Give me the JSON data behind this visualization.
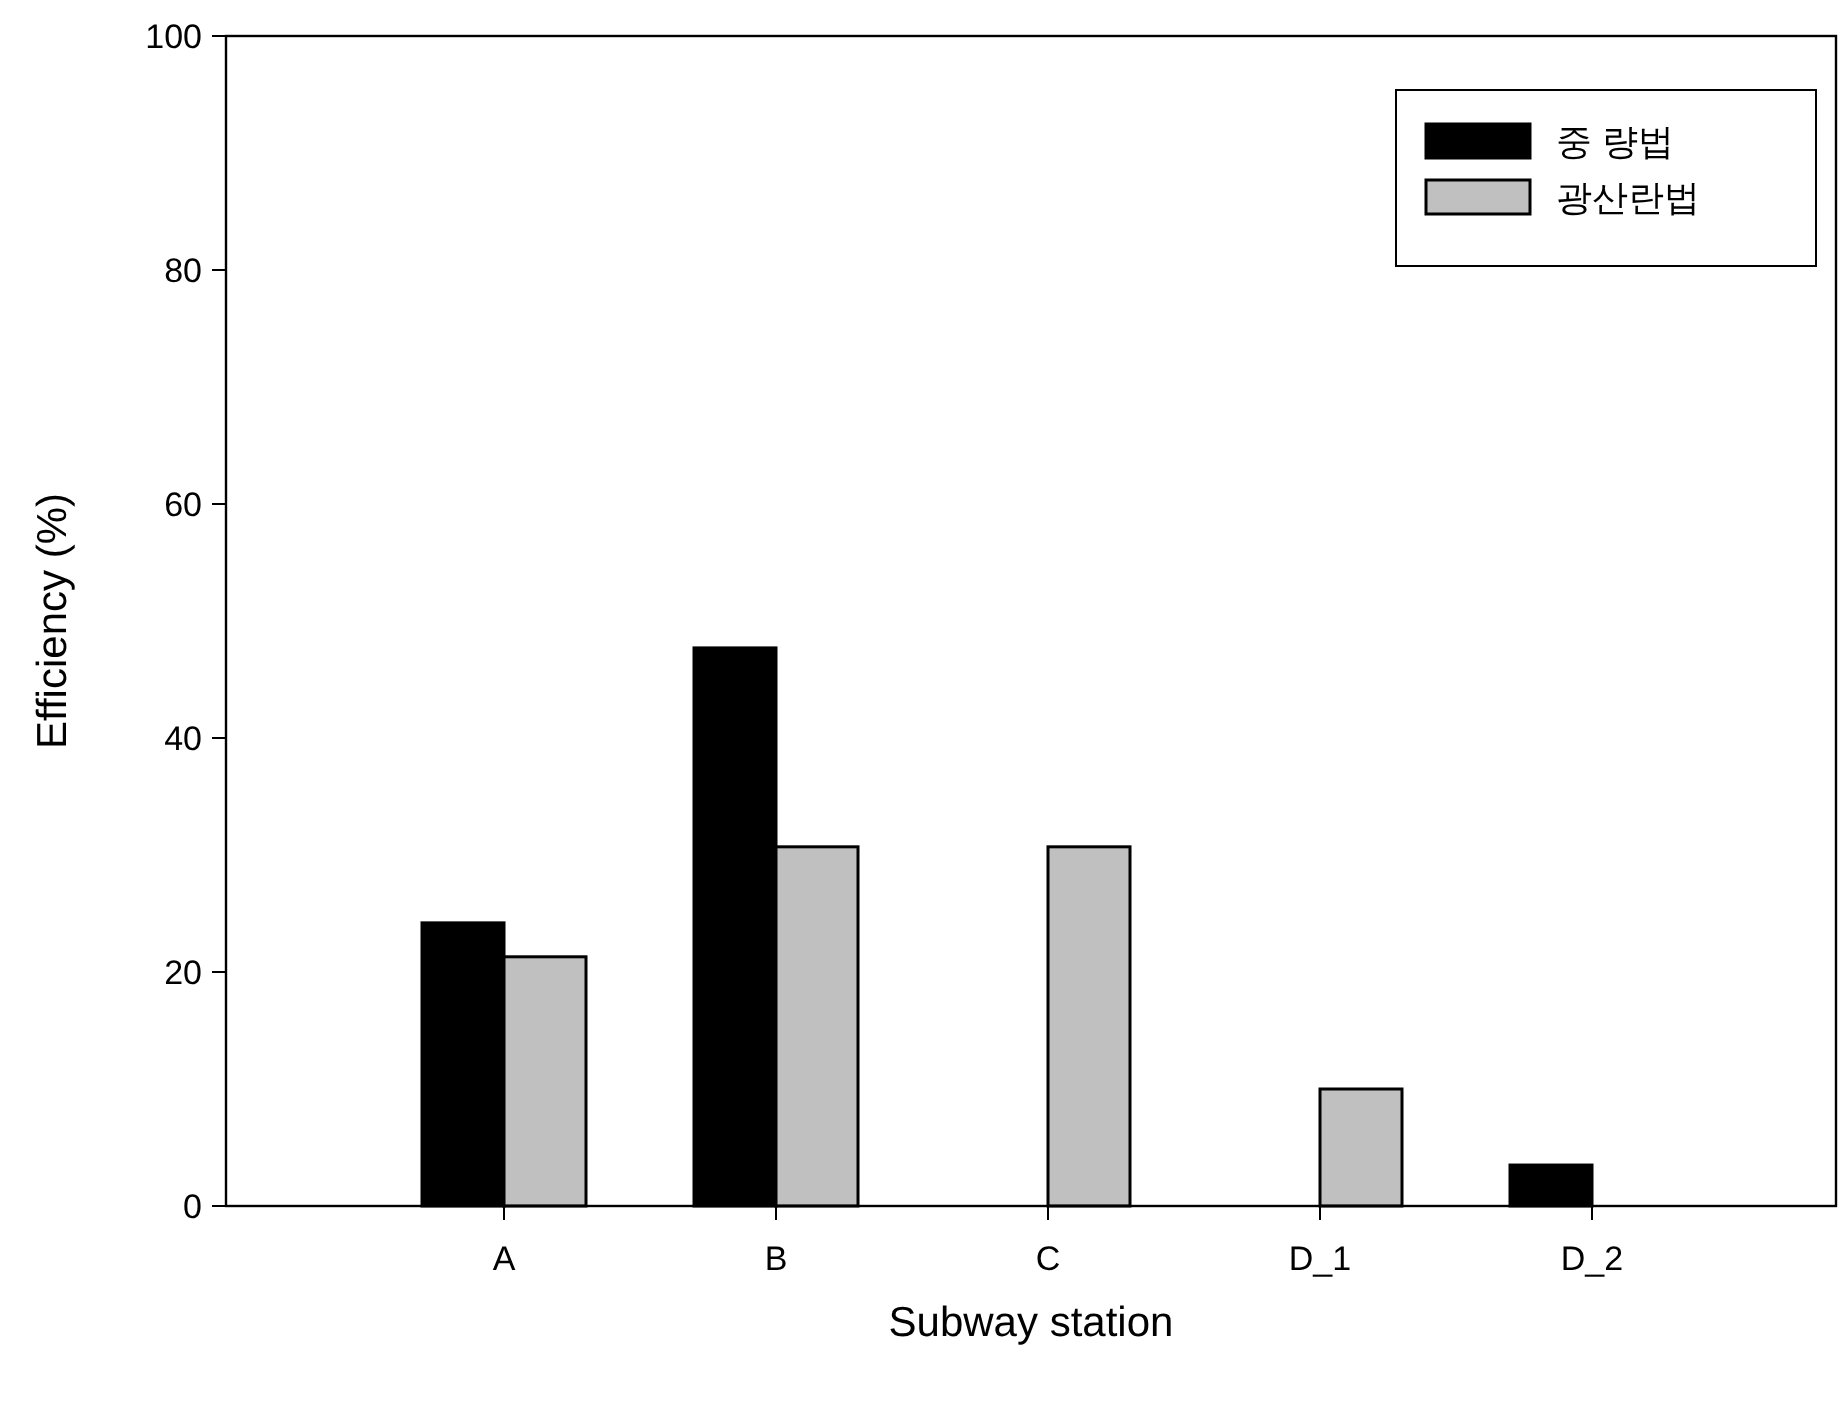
{
  "chart_data": {
    "type": "bar",
    "xlabel": "Subway station",
    "ylabel": "Efficiency (%)",
    "categories": [
      "A",
      "B",
      "C",
      "D_1",
      "D_2"
    ],
    "series": [
      {
        "name": "중 량법",
        "color": "#000000",
        "values": [
          24.2,
          47.7,
          null,
          null,
          3.5
        ]
      },
      {
        "name": "광산란법",
        "color": "#c0c0c0",
        "values": [
          21.3,
          30.7,
          30.7,
          10.0,
          null
        ]
      }
    ],
    "ylim": [
      0,
      100
    ],
    "yticks": [
      0,
      20,
      40,
      60,
      80,
      100
    ],
    "grid": false,
    "legend": "top right"
  }
}
